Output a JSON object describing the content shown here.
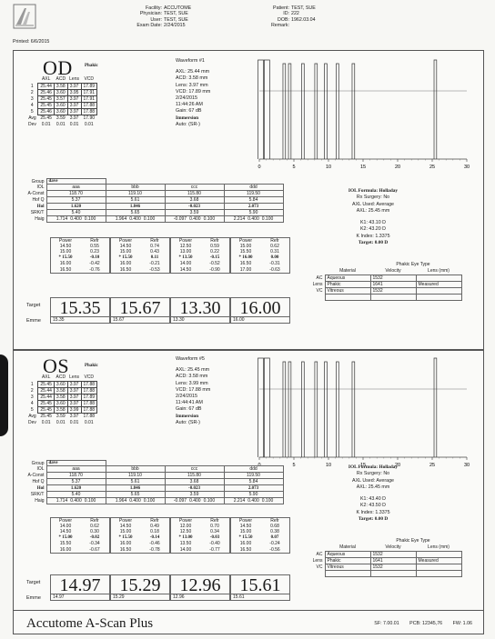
{
  "header": {
    "printed_label": "Printed:",
    "printed_value": "6/6/2015",
    "facility_label": "Facility:",
    "facility_value": "ACCUTOME",
    "physician_label": "Physician:",
    "physician_value": "TEST, SUE",
    "user_label": "User:",
    "user_value": "TEST, SUE",
    "exam_label": "Exam Date:",
    "exam_value": "2/24/2015",
    "patient_label": "Patient:",
    "patient_value": "TEST, SUE",
    "id_label": "ID:",
    "id_value": "222",
    "dob_label": "DOB:",
    "dob_value": "1962.03.04",
    "remark_label": "Remark:",
    "remark_value": ""
  },
  "od": {
    "title": "OD",
    "lens_status": "Phakic",
    "table_headers": [
      "AXL",
      "ACD",
      "Lens",
      "VCD"
    ],
    "rows": [
      {
        "n": "1",
        "v": [
          "25.44",
          "3.58",
          "3.97",
          "17.89"
        ]
      },
      {
        "n": "2",
        "v": [
          "25.46",
          "3.60",
          "3.95",
          "17.91"
        ]
      },
      {
        "n": "3",
        "v": [
          "25.45",
          "3.57",
          "3.97",
          "17.91"
        ]
      },
      {
        "n": "4",
        "v": [
          "25.45",
          "3.60",
          "3.97",
          "17.88"
        ]
      },
      {
        "n": "5",
        "v": [
          "25.46",
          "3.60",
          "3.97",
          "17.88"
        ]
      }
    ],
    "avg_label": "Avg",
    "avg": [
      "25.45",
      "3.59",
      "3.97",
      "17.90"
    ],
    "dev_label": "Dev",
    "dev": [
      "0.01",
      "0.01",
      "0.01",
      "0.01"
    ],
    "waveform": {
      "title": "Waveform #1",
      "axl": "AXL: 25.44 mm",
      "acd": "ACD: 3.58 mm",
      "lens": "Lens: 3.97 mm",
      "vcd": "VCD: 17.89 mm",
      "date": "2/24/2015",
      "time": "11:44:26 AM",
      "gain": "Gain: 67 dB",
      "mode": "Immersion",
      "auto": "Auto: (SR-)",
      "ticks": [
        "0",
        "5",
        "10",
        "15",
        "20",
        "25",
        "30"
      ],
      "spikes": [
        0.2,
        1.1,
        3.6,
        4.4,
        6.3,
        8.2,
        9.6,
        11.3,
        13.6,
        25.45
      ]
    },
    "group_value": "dave",
    "iol": {
      "labels": [
        "Group",
        "IOL",
        "A-Const",
        "Hof Q",
        "Hol",
        "SRK/T",
        "Haig"
      ],
      "cols": [
        {
          "iol": "aaa",
          "aconst": "118.70",
          "hofq": "5.37",
          "hol": "1.620",
          "srkt": "5.40",
          "haig": [
            "1.714",
            "0.400",
            "0.100"
          ]
        },
        {
          "iol": "bbb",
          "aconst": "119.10",
          "hofq": "5.61",
          "hol": "1.846",
          "srkt": "5.65",
          "haig": [
            "1.964",
            "0.400",
            "0.100"
          ]
        },
        {
          "iol": "ccc",
          "aconst": "115.80",
          "hofq": "3.68",
          "hol": "-0.023",
          "srkt": "3.59",
          "haig": [
            "-0.097",
            "0.400",
            "0.100"
          ]
        },
        {
          "iol": "ddd",
          "aconst": "119.50",
          "hofq": "5.84",
          "hol": "2.073",
          "srkt": "5.90",
          "haig": [
            "2.214",
            "0.400",
            "0.100"
          ]
        }
      ]
    },
    "power_header": [
      "Power",
      "Refr"
    ],
    "powers": [
      [
        [
          "14.50",
          "0.55"
        ],
        [
          "15.00",
          "0.23"
        ],
        [
          "* 15.50",
          "-0.10"
        ],
        [
          "16.00",
          "-0.42"
        ],
        [
          "16.50",
          "-0.76"
        ]
      ],
      [
        [
          "14.50",
          "0.74"
        ],
        [
          "15.00",
          "0.43"
        ],
        [
          "* 15.50",
          "0.11"
        ],
        [
          "16.00",
          "-0.21"
        ],
        [
          "16.50",
          "-0.53"
        ]
      ],
      [
        [
          "12.50",
          "0.59"
        ],
        [
          "13.00",
          "0.22"
        ],
        [
          "* 13.50",
          "-0.15"
        ],
        [
          "14.00",
          "-0.52"
        ],
        [
          "14.50",
          "-0.90"
        ]
      ],
      [
        [
          "15.00",
          "0.62"
        ],
        [
          "15.50",
          "0.31"
        ],
        [
          "* 16.00",
          "0.00"
        ],
        [
          "16.50",
          "-0.31"
        ],
        [
          "17.00",
          "-0.63"
        ]
      ]
    ],
    "target_label": "Target",
    "emme_label": "Emme",
    "targets": [
      "15.35",
      "15.67",
      "13.30",
      "16.00"
    ],
    "formula": {
      "name": "IOL Formula: Holladay",
      "rx": "Rx Surgery: No",
      "axl_used": "AXL Used: Average",
      "axl": "AXL: 25.45 mm",
      "k1": "K1: 43.10 D",
      "k2": "K2: 43.20 D",
      "kindex": "K Index: 1.3375",
      "target": "Target: 0.00 D"
    },
    "eye_type": {
      "title": "Phakic Eye Type",
      "headers": [
        "Material",
        "Velocity",
        "Lens (mm)"
      ],
      "rows": [
        {
          "lab": "AC",
          "mat": "Aqueous",
          "vel": "1532",
          "lens": ""
        },
        {
          "lab": "Lens",
          "mat": "Phakic",
          "vel": "1641",
          "lens": "Measured"
        },
        {
          "lab": "VC",
          "mat": "Vitreous",
          "vel": "1532",
          "lens": ""
        }
      ]
    }
  },
  "os": {
    "title": "OS",
    "lens_status": "Phakic",
    "table_headers": [
      "AXL",
      "ACD",
      "Lens",
      "VCD"
    ],
    "rows": [
      {
        "n": "1",
        "v": [
          "25.45",
          "3.60",
          "3.97",
          "17.88"
        ]
      },
      {
        "n": "2",
        "v": [
          "25.44",
          "3.58",
          "3.97",
          "17.88"
        ]
      },
      {
        "n": "3",
        "v": [
          "25.44",
          "3.58",
          "3.97",
          "17.89"
        ]
      },
      {
        "n": "4",
        "v": [
          "25.45",
          "3.60",
          "3.97",
          "17.88"
        ]
      },
      {
        "n": "5",
        "v": [
          "25.45",
          "3.58",
          "3.99",
          "17.88"
        ]
      }
    ],
    "avg_label": "Avg",
    "avg": [
      "25.45",
      "3.59",
      "3.97",
      "17.88"
    ],
    "dev_label": "Dev",
    "dev": [
      "0.01",
      "0.01",
      "0.01",
      "0.01"
    ],
    "waveform": {
      "title": "Waveform #5",
      "axl": "AXL: 25.45 mm",
      "acd": "ACD: 3.58 mm",
      "lens": "Lens: 3.99 mm",
      "vcd": "VCD: 17.88 mm",
      "date": "2/24/2015",
      "time": "11:44:41 AM",
      "gain": "Gain: 67 dB",
      "mode": "Immersion",
      "auto": "Auto: (SR-)",
      "ticks": [
        "0",
        "5",
        "10",
        "15",
        "20",
        "25",
        "30"
      ],
      "spikes": [
        0.2,
        1.1,
        3.6,
        4.4,
        6.3,
        8.2,
        9.6,
        11.3,
        13.6,
        25.45
      ]
    },
    "group_value": "dave",
    "iol": {
      "labels": [
        "Group",
        "IOL",
        "A-Const",
        "Hof Q",
        "Hol",
        "SRK/T",
        "Haig"
      ],
      "cols": [
        {
          "iol": "aaa",
          "aconst": "118.70",
          "hofq": "5.37",
          "hol": "1.620",
          "srkt": "5.40",
          "haig": [
            "1.714",
            "0.400",
            "0.100"
          ]
        },
        {
          "iol": "bbb",
          "aconst": "119.10",
          "hofq": "5.61",
          "hol": "1.846",
          "srkt": "5.65",
          "haig": [
            "1.964",
            "0.400",
            "0.100"
          ]
        },
        {
          "iol": "ccc",
          "aconst": "115.80",
          "hofq": "3.68",
          "hol": "-0.023",
          "srkt": "3.59",
          "haig": [
            "-0.097",
            "0.400",
            "0.100"
          ]
        },
        {
          "iol": "ddd",
          "aconst": "119.50",
          "hofq": "5.84",
          "hol": "2.073",
          "srkt": "5.90",
          "haig": [
            "2.214",
            "0.400",
            "0.100"
          ]
        }
      ]
    },
    "power_header": [
      "Power",
      "Refr"
    ],
    "powers": [
      [
        [
          "14.00",
          "0.62"
        ],
        [
          "14.50",
          "0.30"
        ],
        [
          "* 15.00",
          "-0.02"
        ],
        [
          "15.50",
          "-0.34"
        ],
        [
          "16.00",
          "-0.67"
        ]
      ],
      [
        [
          "14.50",
          "0.49"
        ],
        [
          "15.00",
          "0.18"
        ],
        [
          "* 15.50",
          "-0.14"
        ],
        [
          "16.00",
          "-0.46"
        ],
        [
          "16.50",
          "-0.78"
        ]
      ],
      [
        [
          "12.00",
          "0.70"
        ],
        [
          "12.50",
          "0.34"
        ],
        [
          "* 13.00",
          "-0.03"
        ],
        [
          "13.50",
          "-0.40"
        ],
        [
          "14.00",
          "-0.77"
        ]
      ],
      [
        [
          "14.50",
          "0.68"
        ],
        [
          "15.00",
          "0.38"
        ],
        [
          "* 15.50",
          "0.07"
        ],
        [
          "16.00",
          "-0.24"
        ],
        [
          "16.50",
          "-0.56"
        ]
      ]
    ],
    "target_label": "Target",
    "emme_label": "Emme",
    "targets": [
      "14.97",
      "15.29",
      "12.96",
      "15.61"
    ],
    "formula": {
      "name": "IOL Formula: Holladay",
      "rx": "Rx Surgery: No",
      "axl_used": "AXL Used: Average",
      "axl": "AXL: 25.45 mm",
      "k1": "K1: 43.40 D",
      "k2": "K2: 43.50 D",
      "kindex": "K Index: 1.3375",
      "target": "Target: 0.00 D"
    },
    "eye_type": {
      "title": "Phakic Eye Type",
      "headers": [
        "Material",
        "Velocity",
        "Lens (mm)"
      ],
      "rows": [
        {
          "lab": "AC",
          "mat": "Aqueous",
          "vel": "1532",
          "lens": ""
        },
        {
          "lab": "Lens",
          "mat": "Phakic",
          "vel": "1641",
          "lens": "Measured"
        },
        {
          "lab": "VC",
          "mat": "Vitreous",
          "vel": "1532",
          "lens": ""
        }
      ]
    }
  },
  "footer": {
    "brand": "Accutome A-Scan Plus",
    "sf": "SF: 7.00.01",
    "pcb": "PCB: 12345,76",
    "fw": "FW: 1.06"
  }
}
